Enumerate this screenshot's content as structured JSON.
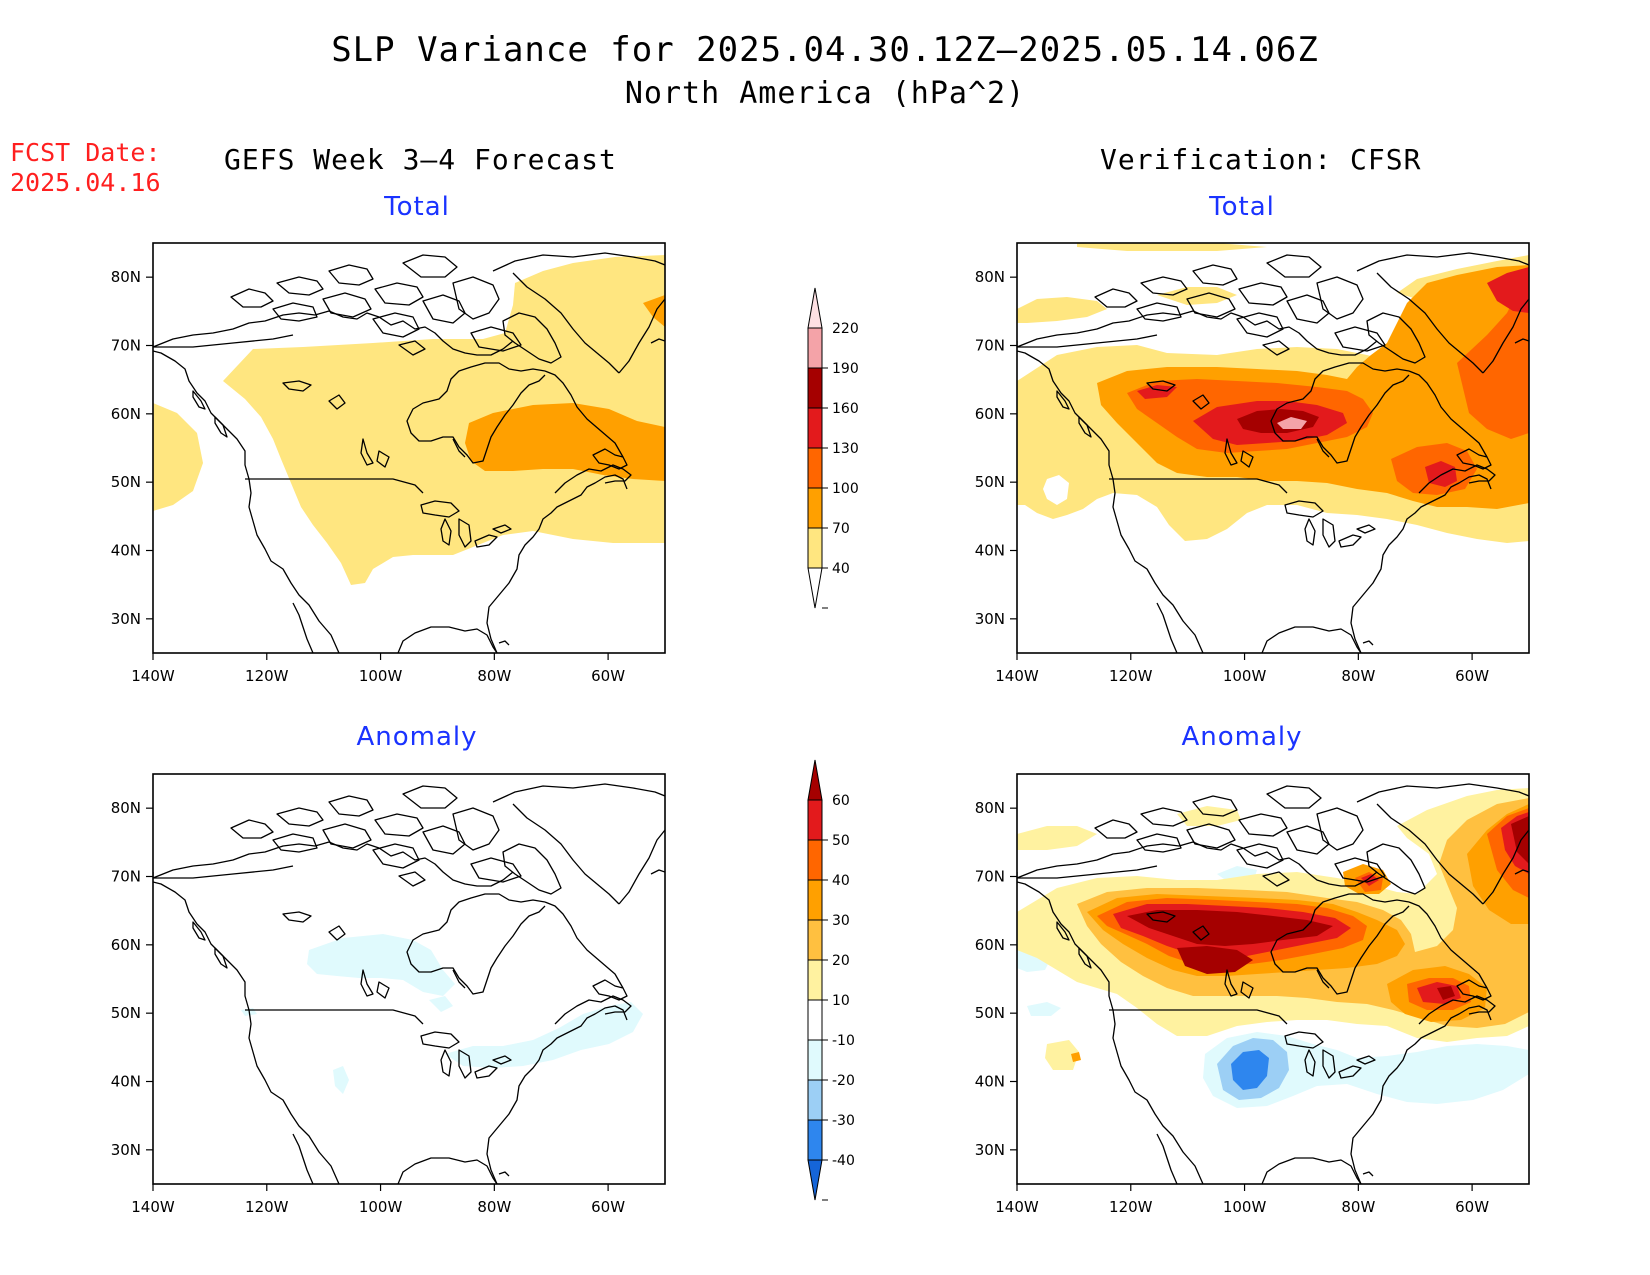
{
  "header": {
    "title": "SLP Variance for 2025.04.30.12Z—2025.05.14.06Z",
    "subtitle": "North America (hPa^2)",
    "fcst_label_line1": "FCST Date:",
    "fcst_label_line2": "2025.04.16",
    "left_heading": "GEFS Week 3–4 Forecast",
    "right_heading": "Verification: CFSR"
  },
  "panels": {
    "top_left_title": "Total",
    "top_right_title": "Total",
    "bottom_left_title": "Anomaly",
    "bottom_right_title": "Anomaly"
  },
  "map_axes": {
    "lon_range": [
      -140,
      -50
    ],
    "lat_range": [
      25,
      85
    ],
    "lon_ticks": [
      "140W",
      "120W",
      "100W",
      "80W",
      "60W"
    ],
    "lat_ticks": [
      "30N",
      "40N",
      "50N",
      "60N",
      "70N",
      "80N"
    ]
  },
  "total_colorbar": {
    "levels": [
      "40",
      "70",
      "100",
      "130",
      "160",
      "190",
      "220"
    ],
    "colors": [
      "#ffffff",
      "#ffe680",
      "#ffa000",
      "#ff6600",
      "#e31a1c",
      "#a50000",
      "#f4a3a8",
      "#fde0e3"
    ]
  },
  "anomaly_colorbar": {
    "levels": [
      "-40",
      "-30",
      "-20",
      "-10",
      "10",
      "20",
      "30",
      "40",
      "50",
      "60"
    ],
    "colors": [
      "#1565d8",
      "#2e86ee",
      "#9ccff5",
      "#e0fafd",
      "#ffffff",
      "#fff2a0",
      "#ffc040",
      "#ffa000",
      "#ff6600",
      "#e31a1c",
      "#a50000"
    ]
  }
}
